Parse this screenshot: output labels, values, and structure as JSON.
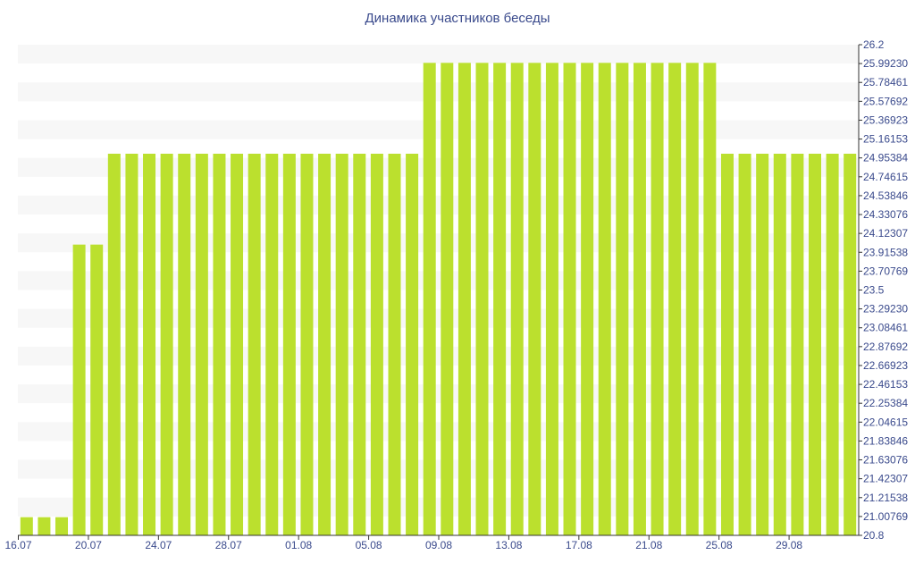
{
  "chart_data": {
    "type": "bar",
    "title": "Динамика участников беседы",
    "xlabel": "",
    "ylabel": "",
    "ylim": [
      20.8,
      26.2
    ],
    "y_tick_labels": [
      "26.2",
      "25.99230",
      "25.78461",
      "25.57692",
      "25.36923",
      "25.16153",
      "24.95384",
      "24.74615",
      "24.53846",
      "24.33076",
      "24.12307",
      "23.91538",
      "23.70769",
      "23.5",
      "23.29230",
      "23.08461",
      "22.87692",
      "22.66923",
      "22.46153",
      "22.25384",
      "22.04615",
      "21.83846",
      "21.63076",
      "21.42307",
      "21.21538",
      "21.00769",
      "20.8"
    ],
    "x_tick_labels": [
      "16.07",
      "20.07",
      "24.07",
      "28.07",
      "01.08",
      "05.08",
      "09.08",
      "13.08",
      "17.08",
      "21.08",
      "25.08",
      "29.08"
    ],
    "grid": "horizontal-bands",
    "colors": {
      "bar": "#bbe02e",
      "band": "#f7f7f7",
      "text": "#3a4a8c",
      "axis": "#333333"
    },
    "categories": [
      "16.07",
      "17.07",
      "18.07",
      "19.07",
      "20.07",
      "21.07",
      "22.07",
      "23.07",
      "24.07",
      "25.07",
      "26.07",
      "27.07",
      "28.07",
      "29.07",
      "30.07",
      "31.07",
      "01.08",
      "02.08",
      "03.08",
      "04.08",
      "05.08",
      "06.08",
      "07.08",
      "08.08",
      "09.08",
      "10.08",
      "11.08",
      "12.08",
      "13.08",
      "14.08",
      "15.08",
      "16.08",
      "17.08",
      "18.08",
      "19.08",
      "20.08",
      "21.08",
      "22.08",
      "23.08",
      "24.08",
      "25.08",
      "26.08",
      "27.08",
      "28.08",
      "29.08",
      "30.08",
      "31.08",
      "01.09"
    ],
    "values": [
      21,
      21,
      21,
      24,
      24,
      25,
      25,
      25,
      25,
      25,
      25,
      25,
      25,
      25,
      25,
      25,
      25,
      25,
      25,
      25,
      25,
      25,
      25,
      26,
      26,
      26,
      26,
      26,
      26,
      26,
      26,
      26,
      26,
      26,
      26,
      26,
      26,
      26,
      26,
      26,
      25,
      25,
      25,
      25,
      25,
      25,
      25,
      25
    ]
  }
}
